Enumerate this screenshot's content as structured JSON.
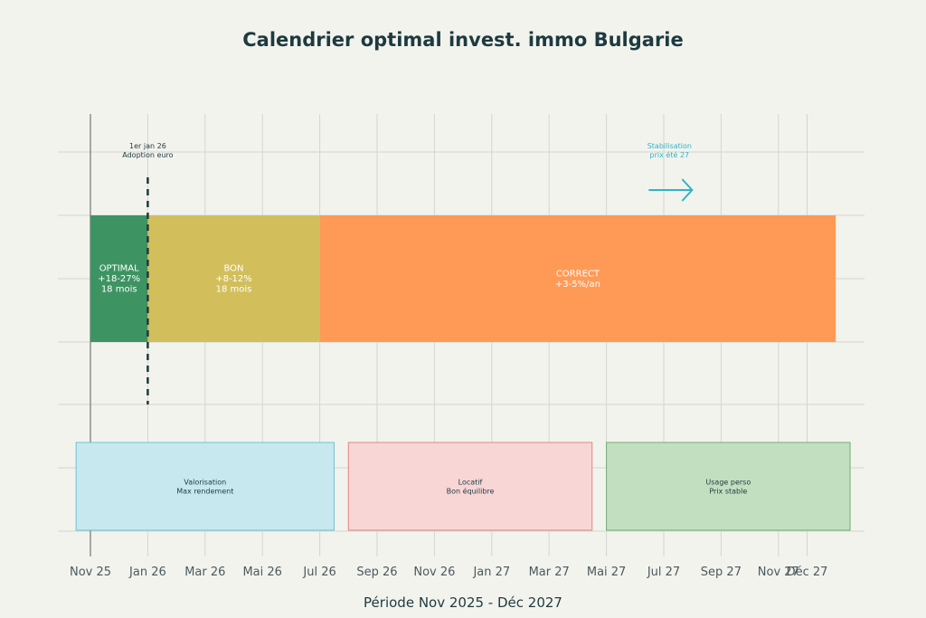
{
  "chart_data": {
    "type": "timeline",
    "title": "Calendrier optimal invest. immo Bulgarie",
    "xlabel": "Période Nov 2025 - Déc 2027",
    "x_ticks": [
      "Nov 25",
      "Jan 26",
      "Mar 26",
      "Mai 26",
      "Jul 26",
      "Sep 26",
      "Nov 26",
      "Jan 27",
      "Mar 27",
      "Mai 27",
      "Jul 27",
      "Sep 27",
      "Nov 27",
      "Déc 27"
    ],
    "x_tick_months": [
      0,
      2,
      4,
      6,
      8,
      10,
      12,
      14,
      16,
      18,
      20,
      22,
      24,
      25
    ],
    "phases": [
      {
        "lines": [
          "OPTIMAL",
          "+18-27%",
          "18 mois"
        ],
        "start": 0,
        "end": 2,
        "color": "#3d9462"
      },
      {
        "lines": [
          "BON",
          "+8-12%",
          "18 mois"
        ],
        "start": 2,
        "end": 8,
        "color": "#d2bf5b"
      },
      {
        "lines": [
          "CORRECT",
          "+3-5%/an"
        ],
        "start": 8,
        "end": 26,
        "color": "#ff9a56"
      }
    ],
    "strategies": [
      {
        "lines": [
          "Valorisation",
          "Max rendement"
        ],
        "start": -0.5,
        "end": 8.5,
        "fill": "#c8e8ef",
        "stroke": "#6fc2d2"
      },
      {
        "lines": [
          "Locatif",
          "Bon équilibre"
        ],
        "start": 9,
        "end": 17.5,
        "fill": "#f9d6d6",
        "stroke": "#e08585"
      },
      {
        "lines": [
          "Usage perso",
          "Prix stable"
        ],
        "start": 18,
        "end": 26.5,
        "fill": "#c2e0c0",
        "stroke": "#6fae72"
      }
    ],
    "annotations": [
      {
        "lines": [
          "1er jan 26",
          "Adoption euro"
        ],
        "month": 2,
        "color": "#1d3a3f"
      },
      {
        "lines": [
          "Stabilisation",
          "prix été 27"
        ],
        "month": 20.2,
        "color": "#2cb5c8"
      }
    ],
    "colors": {
      "background": "#f3f3ee",
      "grid": "#d4d6d0",
      "axis": "#7a7f7c",
      "text": "#1d3a3f",
      "arrow": "#2cb5c8"
    }
  }
}
